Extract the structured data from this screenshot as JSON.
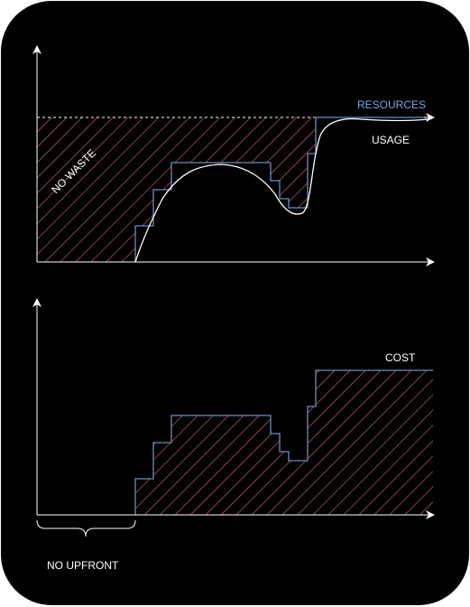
{
  "top_chart": {
    "resources_label": "RESOURCES",
    "usage_label": "USAGE",
    "no_waste_label": "NO WASTE"
  },
  "bottom_chart": {
    "cost_label": "COST",
    "no_upfront_label": "NO UPFRONT"
  },
  "colors": {
    "background": "#000000",
    "axis": "#ffffff",
    "resources_line": "#6c8ebf",
    "resources_text": "#7ea6e0",
    "hatch": "#ea6b66",
    "usage_curve": "#ffffff"
  }
}
